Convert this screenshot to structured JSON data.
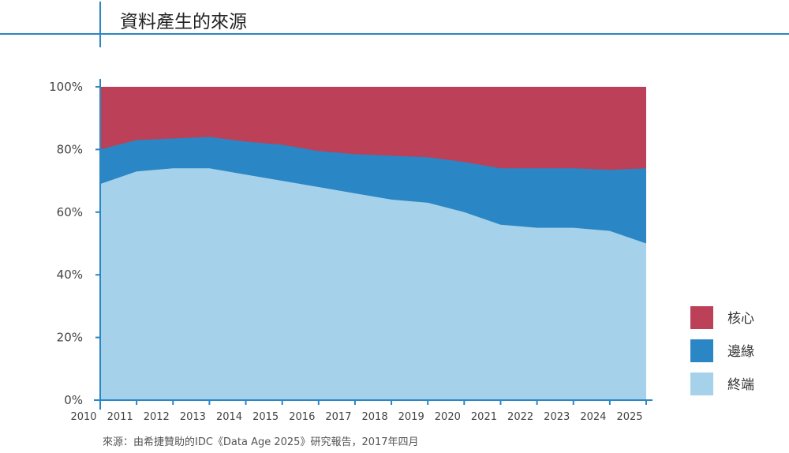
{
  "title": "資料產生的來源",
  "source": "來源：由希捷贊助的IDC《Data Age 2025》研究報告，2017年四月",
  "chart_data": {
    "type": "area",
    "stacked": true,
    "x": [
      "2010",
      "2011",
      "2012",
      "2013",
      "2014",
      "2015",
      "2016",
      "2017",
      "2018",
      "2019",
      "2020",
      "2021",
      "2022",
      "2023",
      "2024",
      "2025"
    ],
    "ylim": [
      0,
      100
    ],
    "yticks": [
      "0%",
      "20%",
      "40%",
      "60%",
      "80%",
      "100%"
    ],
    "series": [
      {
        "name": "終端",
        "color": "#a5d2ea",
        "values": [
          69,
          73,
          74,
          74,
          72,
          70,
          68,
          66,
          64,
          63,
          60,
          56,
          55,
          55,
          54,
          50
        ]
      },
      {
        "name": "邊緣",
        "color": "#2a86c4",
        "values": [
          11,
          10,
          9.5,
          10,
          10.5,
          11.5,
          11.5,
          12.5,
          14,
          14.5,
          16,
          18,
          19,
          19,
          19.5,
          24
        ]
      },
      {
        "name": "核心",
        "color": "#bc4158",
        "values": [
          20,
          17,
          16.5,
          16,
          17.5,
          18.5,
          20.5,
          21.5,
          22,
          22.5,
          24,
          26,
          26,
          26,
          26.5,
          26
        ]
      }
    ],
    "legend_position": "right"
  }
}
